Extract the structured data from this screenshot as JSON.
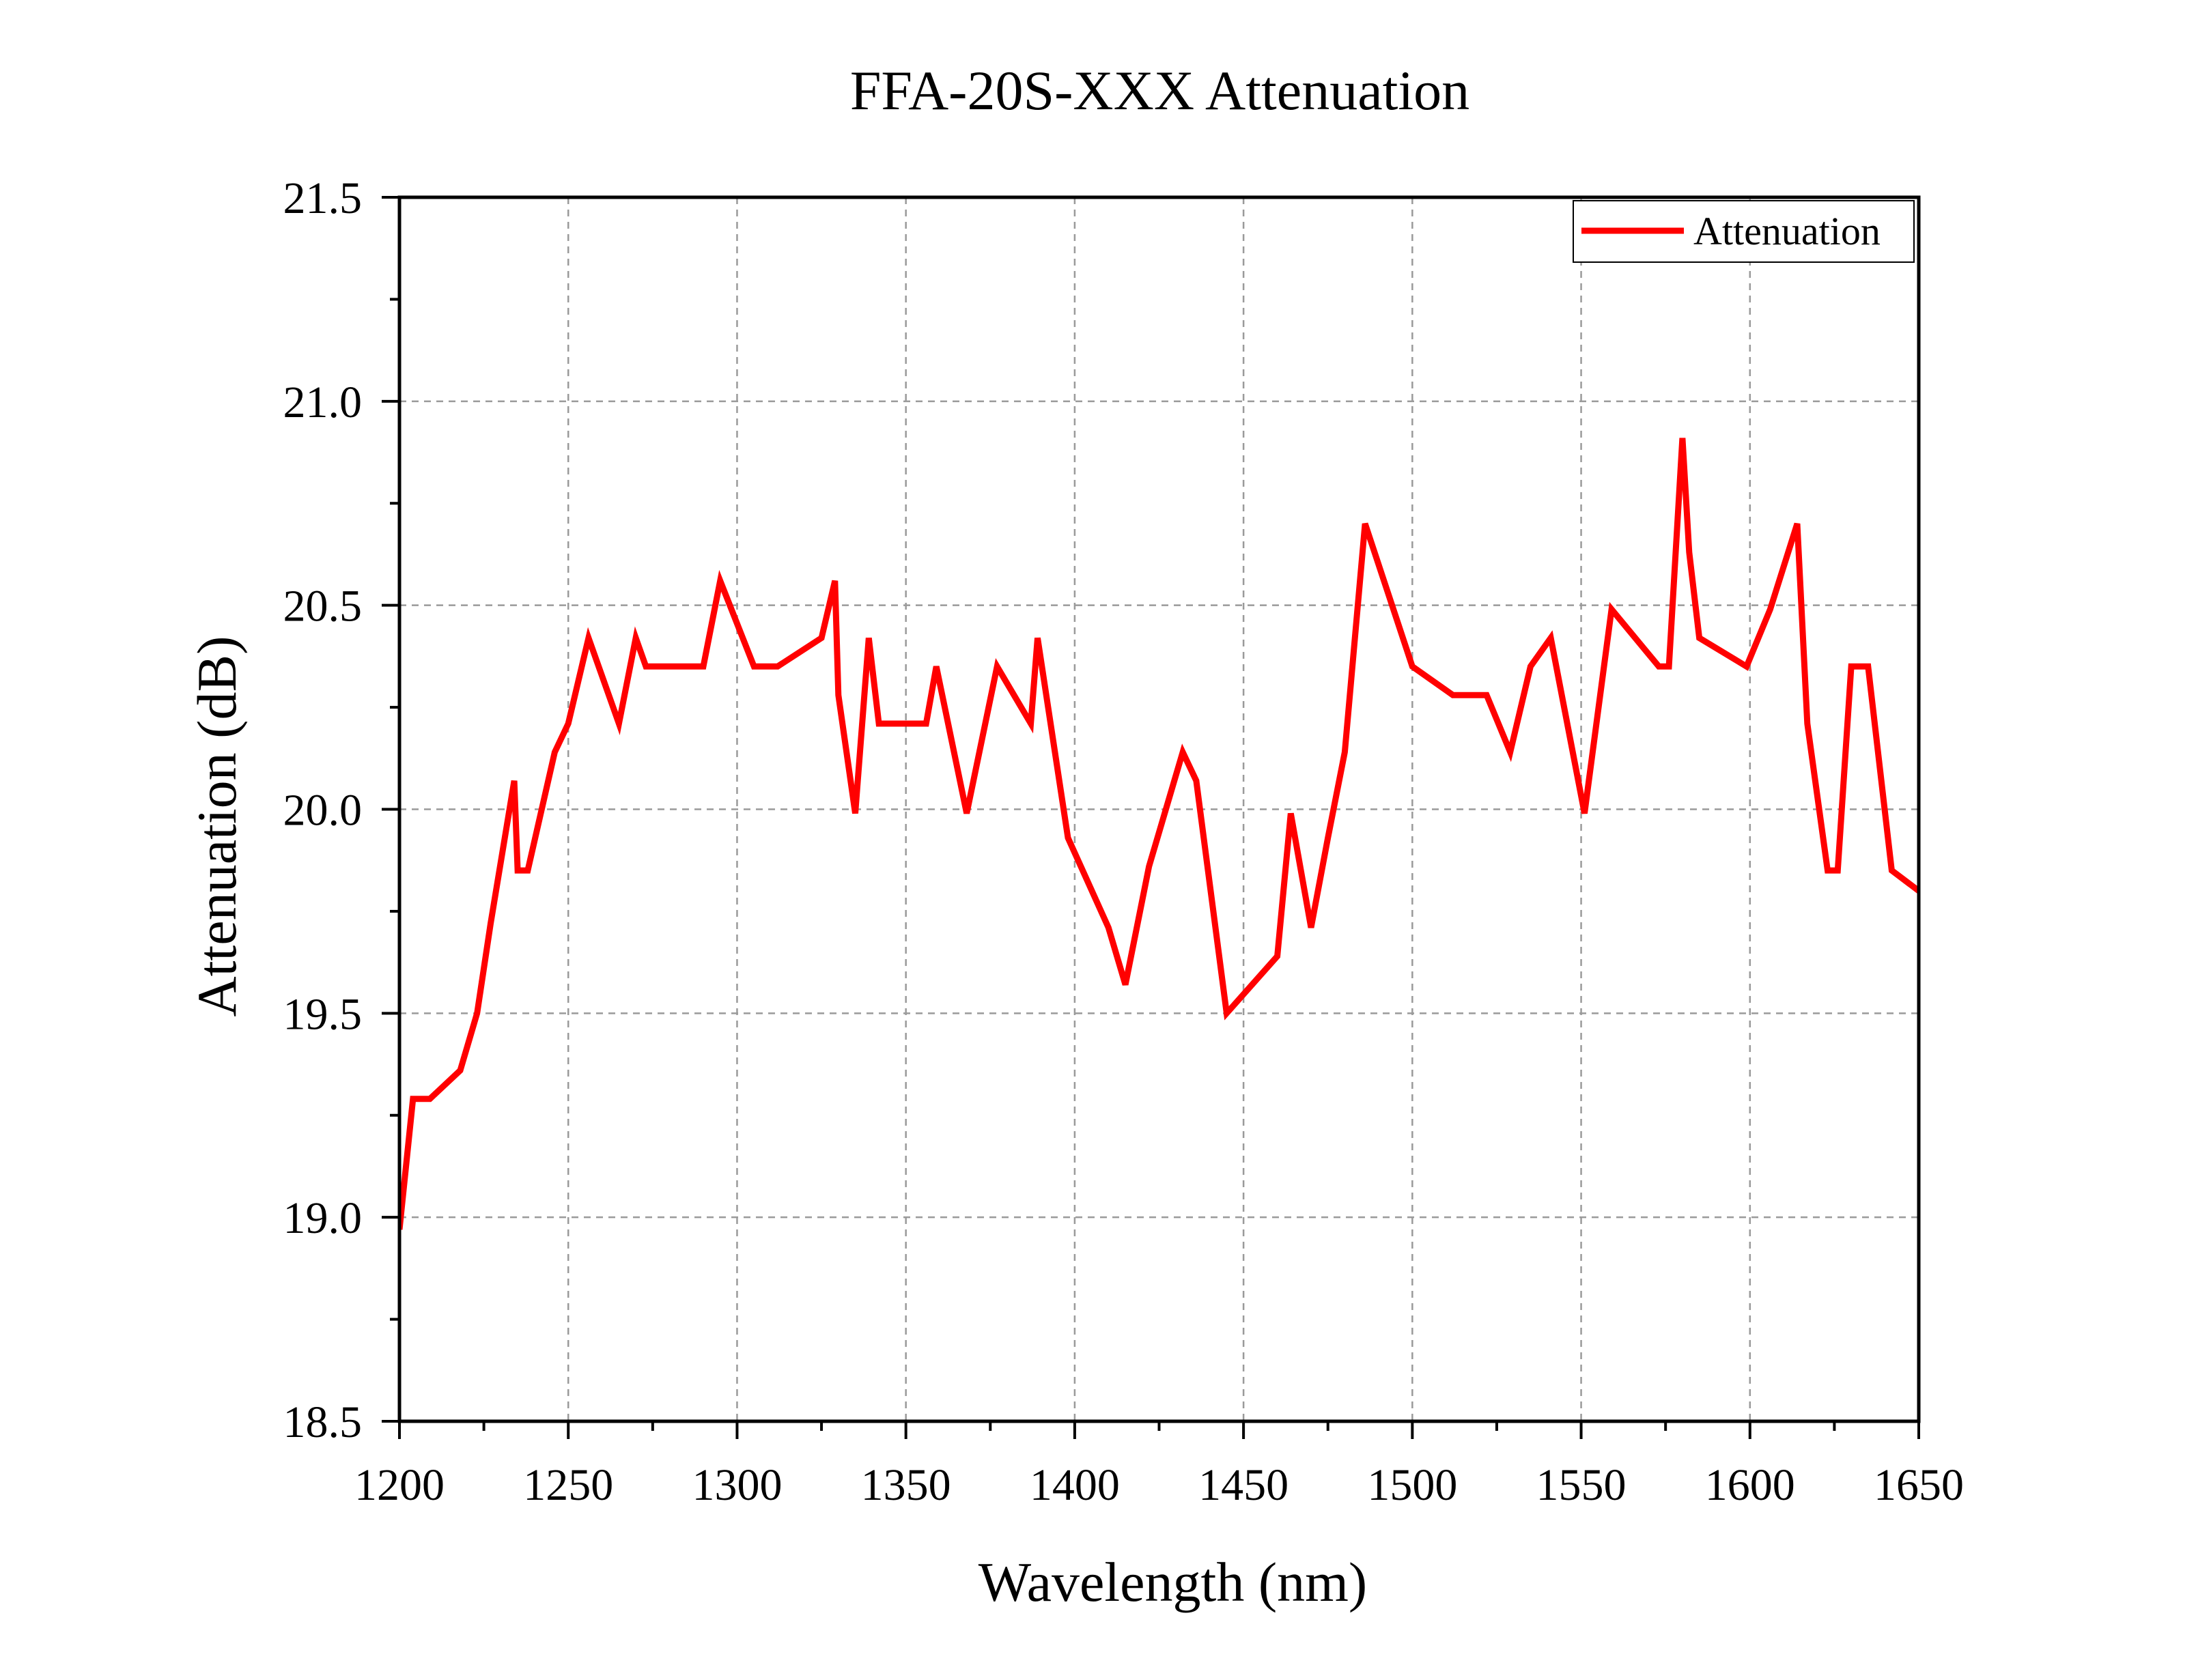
{
  "chart_data": {
    "type": "line",
    "title": "FFA-20S-XXX Attenuation",
    "xlabel": "Wavelength (nm)",
    "ylabel": "Attenuation (dB)",
    "xlim": [
      1200,
      1650
    ],
    "ylim": [
      18.5,
      21.5
    ],
    "x_ticks": [
      1200,
      1250,
      1300,
      1350,
      1400,
      1450,
      1500,
      1550,
      1600,
      1650
    ],
    "x_tick_labels": [
      "1200",
      "1250",
      "1300",
      "1350",
      "1400",
      "1450",
      "1500",
      "1550",
      "1600",
      "1650"
    ],
    "y_ticks": [
      18.5,
      19.0,
      19.5,
      20.0,
      20.5,
      21.0,
      21.5
    ],
    "y_tick_labels": [
      "18.5",
      "19.0",
      "19.5",
      "20.0",
      "20.5",
      "21.0",
      "21.5"
    ],
    "grid": true,
    "legend_position": "top-right",
    "series": [
      {
        "name": "Attenuation",
        "color": "#ff0000",
        "x": [
          1200,
          1204,
          1209,
          1218,
          1223,
          1227,
          1234,
          1235,
          1238,
          1246,
          1250,
          1256,
          1265,
          1270,
          1273,
          1279,
          1290,
          1295,
          1305,
          1312,
          1325,
          1329,
          1330,
          1335,
          1339,
          1342,
          1350,
          1356,
          1359,
          1368,
          1377,
          1387,
          1389,
          1398,
          1410,
          1415,
          1422,
          1432,
          1436,
          1445,
          1460,
          1464,
          1470,
          1475,
          1480,
          1486,
          1500,
          1512,
          1522,
          1529,
          1535,
          1541,
          1551,
          1559,
          1573,
          1576,
          1580,
          1582,
          1585,
          1599,
          1606,
          1614,
          1617,
          1623,
          1626,
          1630,
          1635,
          1642,
          1650
        ],
        "values": [
          18.97,
          19.29,
          19.29,
          19.36,
          19.5,
          19.72,
          20.07,
          19.85,
          19.85,
          20.14,
          20.21,
          20.42,
          20.21,
          20.42,
          20.35,
          20.35,
          20.35,
          20.56,
          20.35,
          20.35,
          20.42,
          20.56,
          20.28,
          19.99,
          20.42,
          20.21,
          20.21,
          20.21,
          20.35,
          19.99,
          20.35,
          20.21,
          20.42,
          19.93,
          19.71,
          19.57,
          19.86,
          20.14,
          20.07,
          19.5,
          19.64,
          19.99,
          19.71,
          19.93,
          20.14,
          20.7,
          20.35,
          20.28,
          20.28,
          20.14,
          20.35,
          20.42,
          19.99,
          20.49,
          20.35,
          20.35,
          20.91,
          20.63,
          20.42,
          20.35,
          20.49,
          20.7,
          20.21,
          19.85,
          19.85,
          20.35,
          20.35,
          19.85,
          19.8
        ]
      }
    ]
  }
}
